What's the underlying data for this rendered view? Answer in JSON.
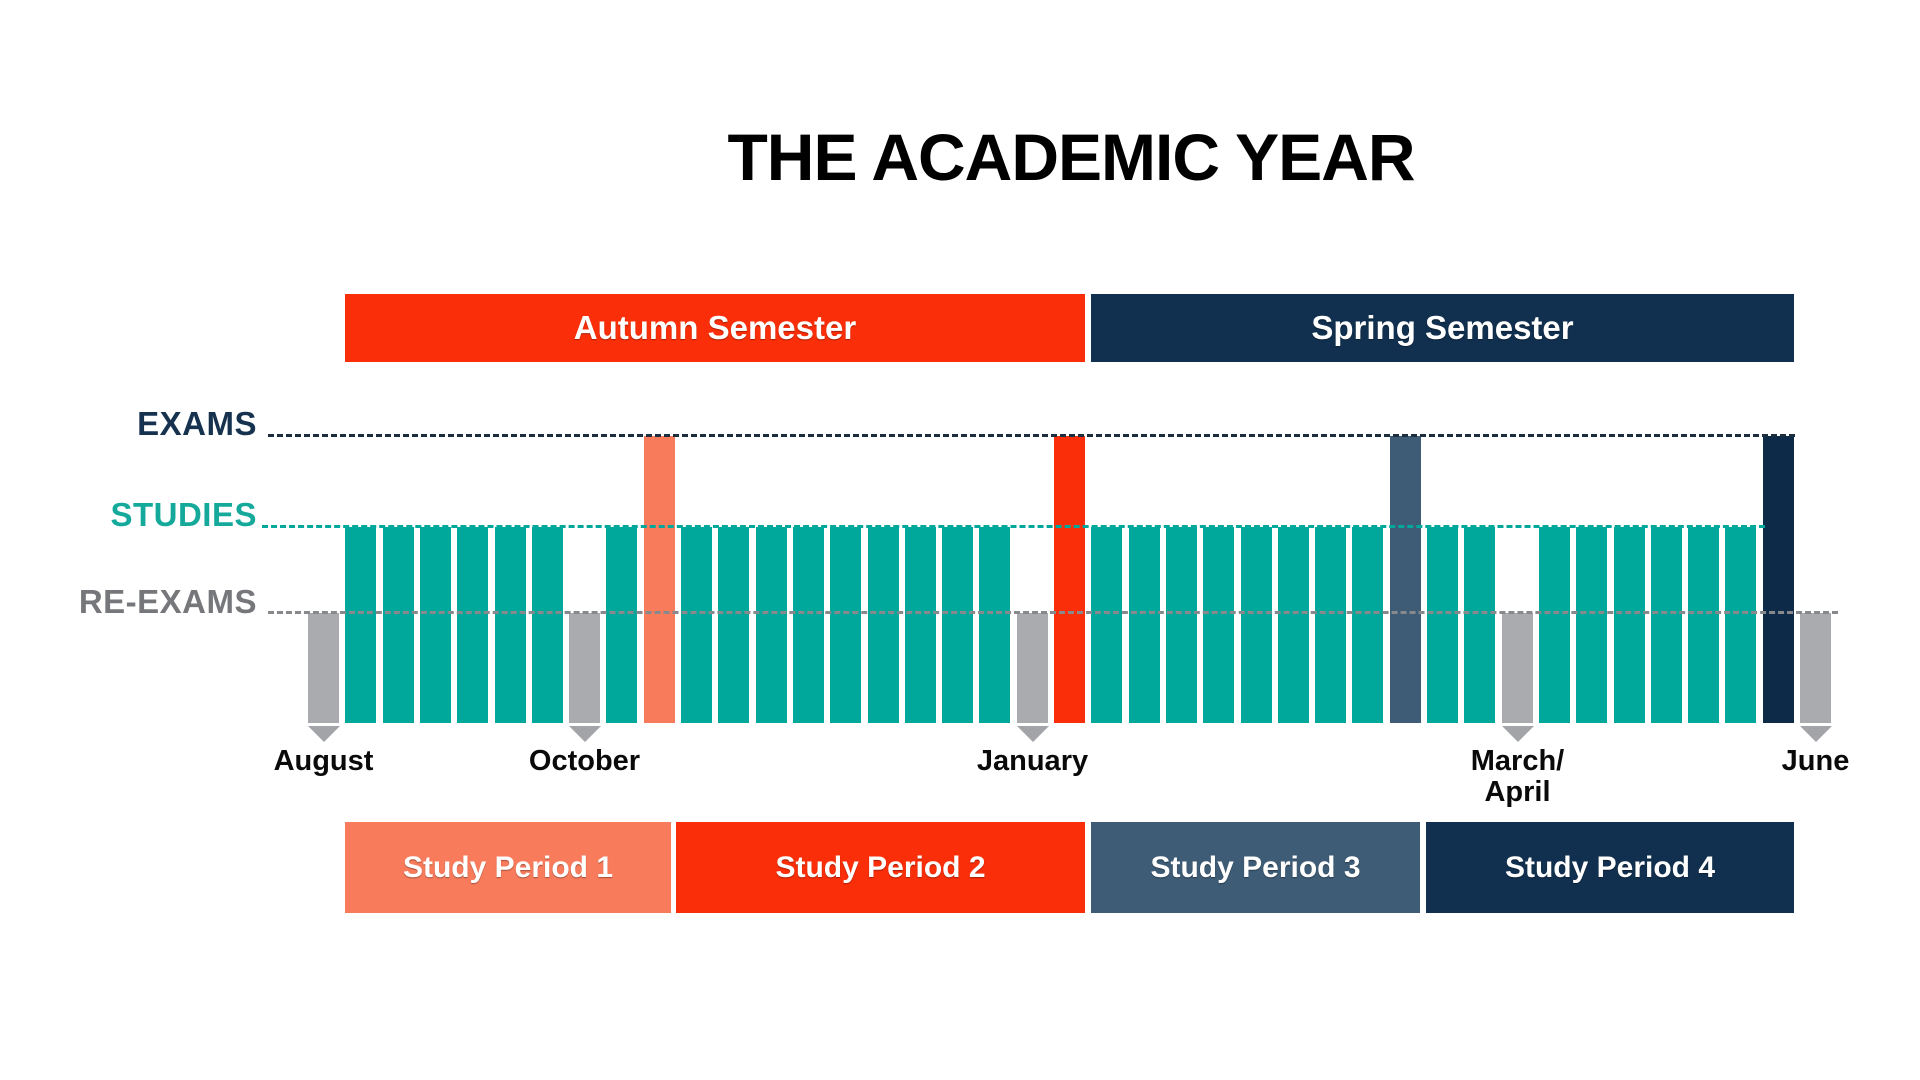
{
  "title": "THE ACADEMIC YEAR",
  "semesters": [
    {
      "label": "Autumn Semester",
      "color": "#FA2E08"
    },
    {
      "label": "Spring Semester",
      "color": "#11304F"
    }
  ],
  "axis_rows": [
    {
      "label": "EXAMS",
      "text_color": "#16324F",
      "line_color": "#1D2E3E"
    },
    {
      "label": "STUDIES",
      "text_color": "#14A99B",
      "line_color": "#00A89B"
    },
    {
      "label": "RE-EXAMS",
      "text_color": "#76777A",
      "line_color": "#87898C"
    }
  ],
  "study_periods": [
    {
      "label": "Study Period 1",
      "color": "#F87B5B"
    },
    {
      "label": "Study Period 2",
      "color": "#FA2E08"
    },
    {
      "label": "Study Period 3",
      "color": "#3E5C75"
    },
    {
      "label": "Study Period 4",
      "color": "#11304F"
    }
  ],
  "months": [
    "August",
    "October",
    "January",
    "March/April",
    "June"
  ],
  "timeline": {
    "colors": {
      "studies": "#00A89B",
      "re_exam": "#A9ABAE",
      "exam_period_1": "#F87B5B",
      "exam_period_2": "#FA2E08",
      "exam_period_3": "#3E5C75",
      "exam_period_4": "#0D2B49"
    },
    "slots": [
      {
        "type": "re-exam",
        "month": [
          "August"
        ]
      },
      {
        "type": "studies"
      },
      {
        "type": "studies"
      },
      {
        "type": "studies"
      },
      {
        "type": "studies"
      },
      {
        "type": "studies"
      },
      {
        "type": "studies"
      },
      {
        "type": "re-exam",
        "month": [
          "October"
        ]
      },
      {
        "type": "studies"
      },
      {
        "type": "exam",
        "period": 1
      },
      {
        "type": "studies"
      },
      {
        "type": "studies"
      },
      {
        "type": "studies"
      },
      {
        "type": "studies"
      },
      {
        "type": "studies"
      },
      {
        "type": "studies"
      },
      {
        "type": "studies"
      },
      {
        "type": "studies"
      },
      {
        "type": "studies"
      },
      {
        "type": "re-exam",
        "month": [
          "January"
        ]
      },
      {
        "type": "exam",
        "period": 2
      },
      {
        "type": "studies"
      },
      {
        "type": "studies"
      },
      {
        "type": "studies"
      },
      {
        "type": "studies"
      },
      {
        "type": "studies"
      },
      {
        "type": "studies"
      },
      {
        "type": "studies"
      },
      {
        "type": "studies"
      },
      {
        "type": "exam",
        "period": 3
      },
      {
        "type": "studies"
      },
      {
        "type": "studies"
      },
      {
        "type": "re-exam",
        "month": [
          "March/",
          "April"
        ]
      },
      {
        "type": "studies"
      },
      {
        "type": "studies"
      },
      {
        "type": "studies"
      },
      {
        "type": "studies"
      },
      {
        "type": "studies"
      },
      {
        "type": "studies"
      },
      {
        "type": "exam",
        "period": 4
      },
      {
        "type": "re-exam",
        "month": [
          "June"
        ]
      }
    ]
  }
}
